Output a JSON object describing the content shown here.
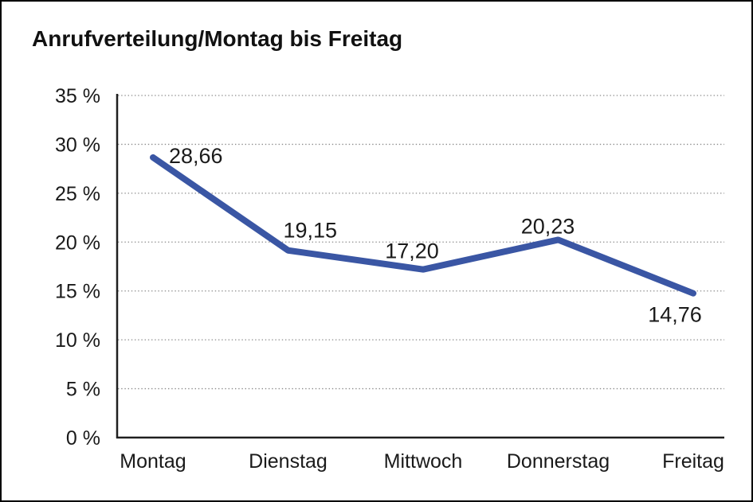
{
  "window": {
    "background": "#ffffff",
    "border_color": "#000000"
  },
  "chart_data": {
    "type": "line",
    "title": "Anrufverteilung/Montag bis Freitag",
    "categories": [
      "Montag",
      "Dienstag",
      "Mittwoch",
      "Donnerstag",
      "Freitag"
    ],
    "values": [
      28.66,
      19.15,
      17.2,
      20.23,
      14.76
    ],
    "value_labels": [
      "28,66",
      "19,15",
      "17,20",
      "20,23",
      "14,76"
    ],
    "series_name": "Anrufverteilung",
    "xlabel": "",
    "ylabel": "",
    "ylim": [
      0,
      35
    ],
    "y_tick_step": 5,
    "y_ticks": [
      0,
      5,
      10,
      15,
      20,
      25,
      30,
      35
    ],
    "y_tick_labels": [
      "0 %",
      "5 %",
      "10 %",
      "15 %",
      "20 %",
      "25 %",
      "30 %",
      "35 %"
    ],
    "grid": "horizontal-dotted",
    "legend_position": "none",
    "line_color": "#3A56A4",
    "axis_color": "#1f1f1f",
    "grid_color": "#8c8c8c",
    "label_color": "#1a1a1a",
    "title_color": "#111111"
  }
}
